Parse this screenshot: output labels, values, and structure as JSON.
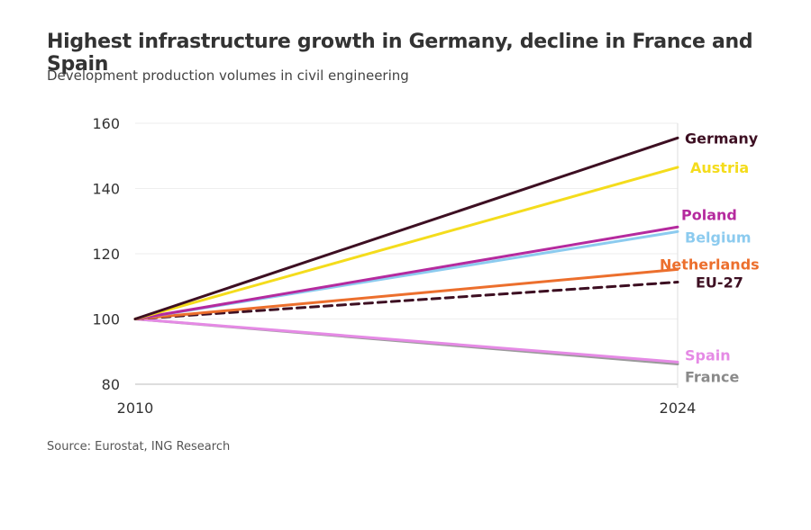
{
  "header": {
    "title": "Highest infrastructure growth in Germany, decline in France and Spain",
    "subtitle": "Development production volumes in civil engineering"
  },
  "footer": {
    "source": "Source: Eurostat, ING Research"
  },
  "chart_data": {
    "type": "line",
    "title": "Highest infrastructure growth in Germany, decline in France and Spain",
    "subtitle": "Development production volumes in civil engineering",
    "x": [
      2010,
      2024
    ],
    "x_ticks": [
      "2010",
      "2024"
    ],
    "ylim": [
      80,
      160
    ],
    "y_ticks": [
      80,
      100,
      120,
      140,
      160
    ],
    "grid": true,
    "legend": "direct-labels-right",
    "series": [
      {
        "name": "Germany",
        "values": [
          100,
          155.5
        ],
        "color": "#3d0f22",
        "dashed": false
      },
      {
        "name": "Austria",
        "values": [
          100,
          146.5
        ],
        "color": "#f4dc1c",
        "dashed": false
      },
      {
        "name": "Poland",
        "values": [
          100,
          128.2
        ],
        "color": "#b52a9e",
        "dashed": false
      },
      {
        "name": "Belgium",
        "values": [
          100,
          126.8
        ],
        "color": "#8ccbef",
        "dashed": false
      },
      {
        "name": "Netherlands",
        "values": [
          100,
          115.2
        ],
        "color": "#ec6f2d",
        "dashed": false
      },
      {
        "name": "EU-27",
        "values": [
          100,
          111.3
        ],
        "color": "#3d0f22",
        "dashed": true
      },
      {
        "name": "Spain",
        "values": [
          100,
          86.8
        ],
        "color": "#e58ae5",
        "dashed": false
      },
      {
        "name": "France",
        "values": [
          100,
          86.2
        ],
        "color": "#9a9a9a",
        "dashed": false
      }
    ]
  }
}
